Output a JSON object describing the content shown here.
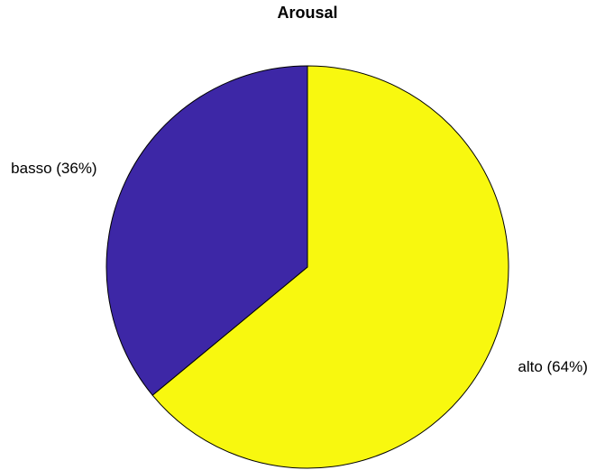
{
  "chart_data": {
    "type": "pie",
    "title": "Arousal",
    "slices": [
      {
        "label": "alto (64%)",
        "value": 64,
        "color": "#f8f80f"
      },
      {
        "label": "basso (36%)",
        "value": 36,
        "color": "#3d27a6"
      }
    ],
    "start_angle_deg": 0,
    "direction": "clockwise",
    "edge_color": "#000000"
  }
}
